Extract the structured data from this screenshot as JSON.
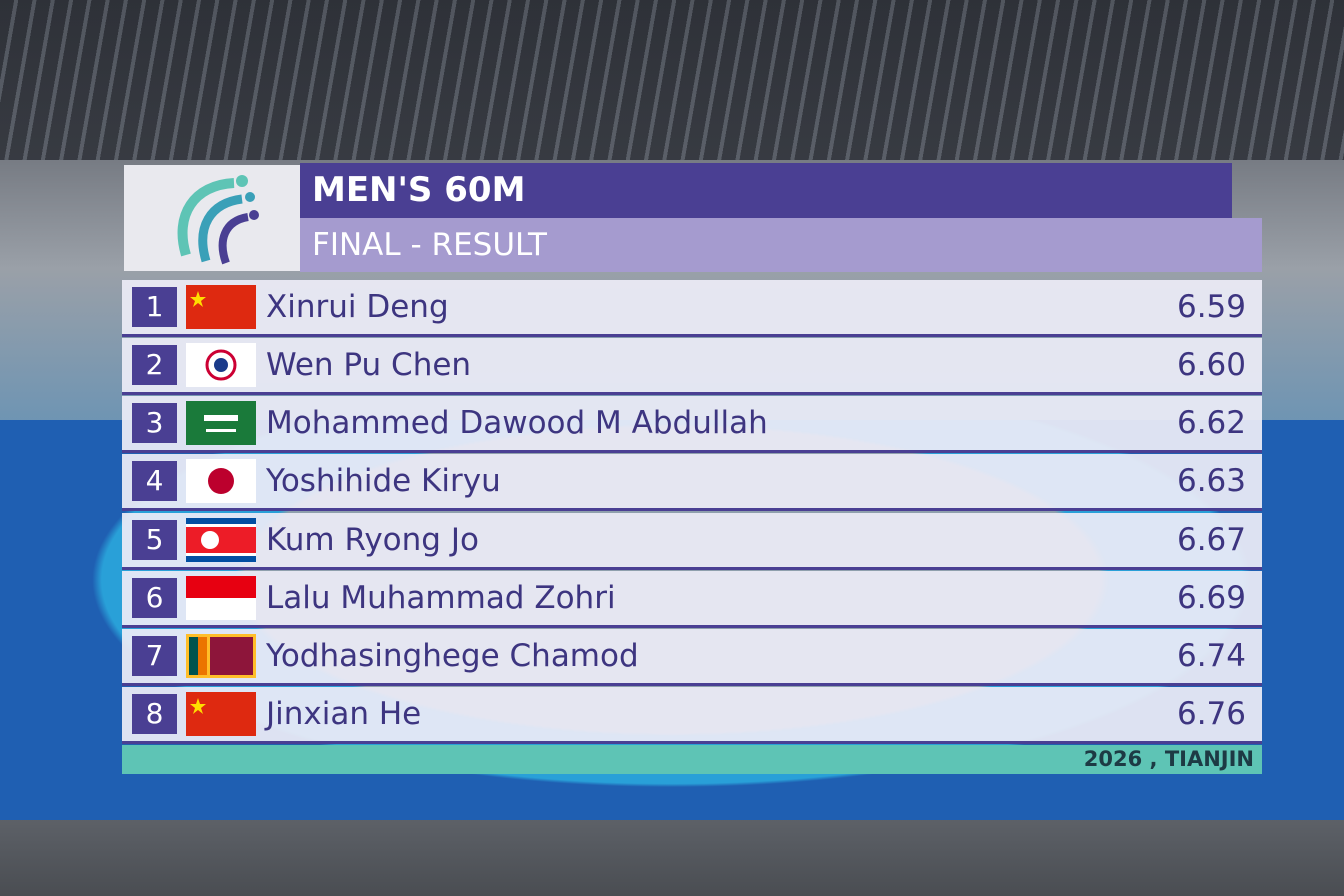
{
  "header": {
    "title": "MEN'S 60M",
    "subtitle": "FINAL - RESULT"
  },
  "results": [
    {
      "rank": 1,
      "name": "Xinrui Deng",
      "time": "6.59"
    },
    {
      "rank": 2,
      "name": "Wen Pu Chen",
      "time": "6.60"
    },
    {
      "rank": 3,
      "name": "Mohammed Dawood M Abdullah",
      "time": "6.62"
    },
    {
      "rank": 4,
      "name": "Yoshihide Kiryu",
      "time": "6.63"
    },
    {
      "rank": 5,
      "name": "Kum Ryong Jo",
      "time": "6.67"
    },
    {
      "rank": 6,
      "name": "Lalu Muhammad Zohri",
      "time": "6.69"
    },
    {
      "rank": 7,
      "name": "Yodhasinghege Chamod",
      "time": "6.74"
    },
    {
      "rank": 8,
      "name": "Jinxian He",
      "time": "6.76"
    }
  ],
  "footer": {
    "text": "2026 , TIANJIN"
  }
}
